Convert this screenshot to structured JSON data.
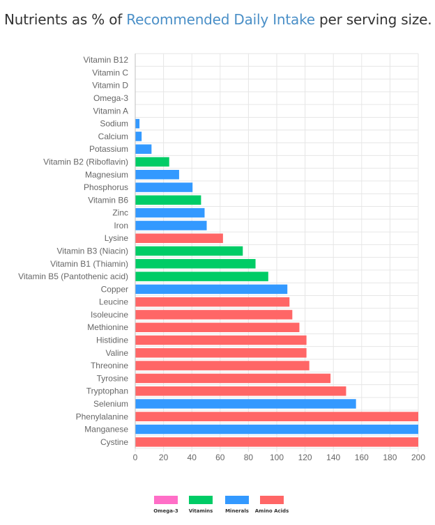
{
  "heading": {
    "prefix": "Nutrients as % of ",
    "link": "Recommended Daily Intake",
    "suffix": " per serving size."
  },
  "colors": {
    "Omega-3": "#ff6ec7",
    "Vitamins": "#00cc66",
    "Minerals": "#3399ff",
    "Amino Acids": "#ff6666"
  },
  "chart_data": {
    "type": "bar",
    "orientation": "horizontal",
    "xlim": [
      0,
      200
    ],
    "xticks": [
      0,
      20,
      40,
      60,
      80,
      100,
      120,
      140,
      160,
      180,
      200
    ],
    "grid": true,
    "legend_placement": "bottom",
    "legend": [
      "Omega-3",
      "Vitamins",
      "Minerals",
      "Amino Acids"
    ],
    "categories": [
      "Vitamin B12",
      "Vitamin C",
      "Vitamin D",
      "Omega-3",
      "Vitamin A",
      "Sodium",
      "Calcium",
      "Potassium",
      "Vitamin B2 (Riboflavin)",
      "Magnesium",
      "Phosphorus",
      "Vitamin B6",
      "Zinc",
      "Iron",
      "Lysine",
      "Vitamin B3 (Niacin)",
      "Vitamin B1 (Thiamin)",
      "Vitamin B5 (Pantothenic acid)",
      "Copper",
      "Leucine",
      "Isoleucine",
      "Methionine",
      "Histidine",
      "Valine",
      "Threonine",
      "Tyrosine",
      "Tryptophan",
      "Selenium",
      "Phenylalanine",
      "Manganese",
      "Cystine"
    ],
    "values": [
      0,
      0,
      0,
      0,
      0,
      3,
      4.5,
      11.5,
      24,
      31,
      40.5,
      46.5,
      49,
      50.5,
      62,
      76,
      85,
      94,
      107.5,
      109,
      111,
      116,
      121,
      121,
      123,
      138,
      149,
      156,
      200,
      200,
      200
    ],
    "groups": [
      "Vitamins",
      "Vitamins",
      "Vitamins",
      "Omega-3",
      "Vitamins",
      "Minerals",
      "Minerals",
      "Minerals",
      "Vitamins",
      "Minerals",
      "Minerals",
      "Vitamins",
      "Minerals",
      "Minerals",
      "Amino Acids",
      "Vitamins",
      "Vitamins",
      "Vitamins",
      "Minerals",
      "Amino Acids",
      "Amino Acids",
      "Amino Acids",
      "Amino Acids",
      "Amino Acids",
      "Amino Acids",
      "Amino Acids",
      "Amino Acids",
      "Minerals",
      "Amino Acids",
      "Minerals",
      "Amino Acids"
    ]
  }
}
